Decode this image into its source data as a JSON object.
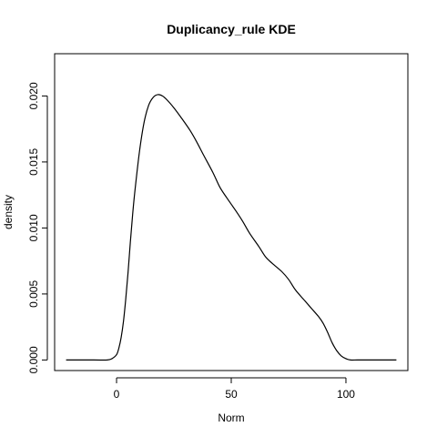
{
  "chart_data": {
    "type": "line",
    "title": "Duplicancy_rule  KDE",
    "xlabel": "Norm",
    "ylabel": "density",
    "xlim": [
      -27,
      127
    ],
    "ylim": [
      -0.0008,
      0.0232
    ],
    "x_ticks": [
      0,
      50,
      100
    ],
    "x_tick_labels": [
      "0",
      "50",
      "100"
    ],
    "y_ticks": [
      0.0,
      0.005,
      0.01,
      0.015,
      0.02
    ],
    "y_tick_labels": [
      "0.000",
      "0.005",
      "0.010",
      "0.015",
      "0.020"
    ],
    "grid": false,
    "legend": "none",
    "series": [
      {
        "color": "#000000",
        "x": [
          -22,
          -10,
          -4,
          -2,
          0,
          1,
          2,
          3,
          4,
          5,
          6,
          7,
          8,
          10,
          12,
          14,
          16,
          18,
          20,
          22,
          25,
          28,
          32,
          35,
          38,
          42,
          45,
          48,
          52,
          55,
          58,
          62,
          65,
          68,
          72,
          75,
          78,
          82,
          85,
          88,
          90,
          92,
          94,
          96,
          98,
          100,
          102,
          105,
          110,
          122
        ],
        "y": [
          0.0,
          0.0,
          0.0,
          0.0001,
          0.0004,
          0.0009,
          0.0017,
          0.0029,
          0.0046,
          0.0066,
          0.0089,
          0.011,
          0.0128,
          0.0158,
          0.018,
          0.0193,
          0.0199,
          0.0201,
          0.02,
          0.0197,
          0.0191,
          0.0184,
          0.0174,
          0.0165,
          0.0155,
          0.0142,
          0.0131,
          0.0123,
          0.0113,
          0.0105,
          0.0096,
          0.0086,
          0.0078,
          0.0073,
          0.0067,
          0.0061,
          0.0053,
          0.0045,
          0.0039,
          0.0033,
          0.0028,
          0.0021,
          0.0013,
          0.0007,
          0.0003,
          0.0001,
          0.0,
          0.0,
          0.0,
          0.0
        ]
      }
    ]
  }
}
